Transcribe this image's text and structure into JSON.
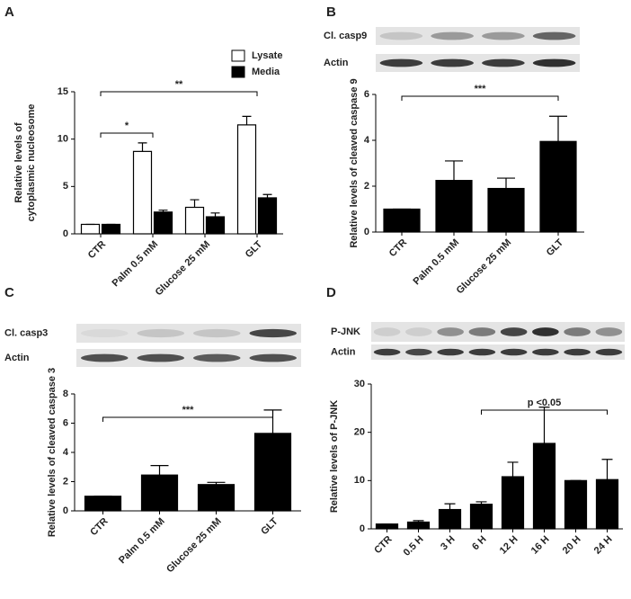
{
  "chart_data": [
    {
      "type": "bar",
      "panel": "A",
      "categories": [
        "CTR",
        "Palm 0.5 mM",
        "Glucose 25 mM",
        "GLT"
      ],
      "series": [
        {
          "name": "Lysate",
          "color": "#ffffff",
          "values": [
            1,
            8.7,
            2.8,
            11.5
          ],
          "errors": [
            0,
            0.9,
            0.8,
            0.9
          ]
        },
        {
          "name": "Media",
          "color": "#000000",
          "values": [
            1,
            2.3,
            1.8,
            3.8
          ],
          "errors": [
            0,
            0.2,
            0.4,
            0.35
          ]
        }
      ],
      "ylabel": [
        "Relative levels of",
        "cytoplasmic nucleosome"
      ],
      "ylim": [
        0,
        15
      ],
      "yticks": [
        0,
        5,
        10,
        15
      ],
      "legend": "top-right",
      "annotations": [
        {
          "text": "**",
          "from": "CTR",
          "to": "GLT"
        },
        {
          "text": "*",
          "from": "CTR",
          "to": "Palm 0.5 mM"
        }
      ]
    },
    {
      "type": "bar",
      "panel": "B",
      "blot_labels": [
        "Cl. casp9",
        "Actin"
      ],
      "categories": [
        "CTR",
        "Palm 0.5 mM",
        "Glucose 25 mM",
        "GLT"
      ],
      "series": [
        {
          "color": "#000000",
          "values": [
            1,
            2.25,
            1.9,
            3.95
          ],
          "errors": [
            0,
            0.85,
            0.45,
            1.1
          ]
        }
      ],
      "ylabel": [
        "Relative levels of cleaved caspase 9"
      ],
      "ylim": [
        0,
        6
      ],
      "yticks": [
        0,
        2,
        4,
        6
      ],
      "annotations": [
        {
          "text": "***",
          "from": "CTR",
          "to": "GLT"
        }
      ]
    },
    {
      "type": "bar",
      "panel": "C",
      "blot_labels": [
        "Cl. casp3",
        "Actin"
      ],
      "categories": [
        "CTR",
        "Palm 0.5 mM",
        "Glucose 25 mM",
        "GLT"
      ],
      "series": [
        {
          "color": "#000000",
          "values": [
            1,
            2.45,
            1.8,
            5.3
          ],
          "errors": [
            0,
            0.65,
            0.15,
            1.6
          ]
        }
      ],
      "ylabel": [
        "Relative levels of cleaved caspase 3"
      ],
      "ylim": [
        0,
        8
      ],
      "yticks": [
        0,
        2,
        4,
        6,
        8
      ],
      "annotations": [
        {
          "text": "***",
          "from": "CTR",
          "to": "GLT"
        }
      ]
    },
    {
      "type": "bar",
      "panel": "D",
      "blot_labels": [
        "P-JNK",
        "Actin"
      ],
      "categories": [
        "CTR",
        "0.5 H",
        "3 H",
        "6 H",
        "12 H",
        "16 H",
        "20 H",
        "24 H"
      ],
      "series": [
        {
          "color": "#000000",
          "values": [
            1,
            1.4,
            4,
            5.1,
            10.8,
            17.7,
            10,
            10.2
          ],
          "errors": [
            0,
            0.3,
            1.2,
            0.5,
            3,
            7.5,
            0,
            4.2
          ]
        }
      ],
      "ylabel": [
        "Relative levels of P-JNK"
      ],
      "ylim": [
        0,
        30
      ],
      "yticks": [
        0,
        10,
        20,
        30
      ],
      "annotations": [
        {
          "text": "p <0.05",
          "from": "6 H",
          "to": "24 H"
        }
      ]
    }
  ]
}
